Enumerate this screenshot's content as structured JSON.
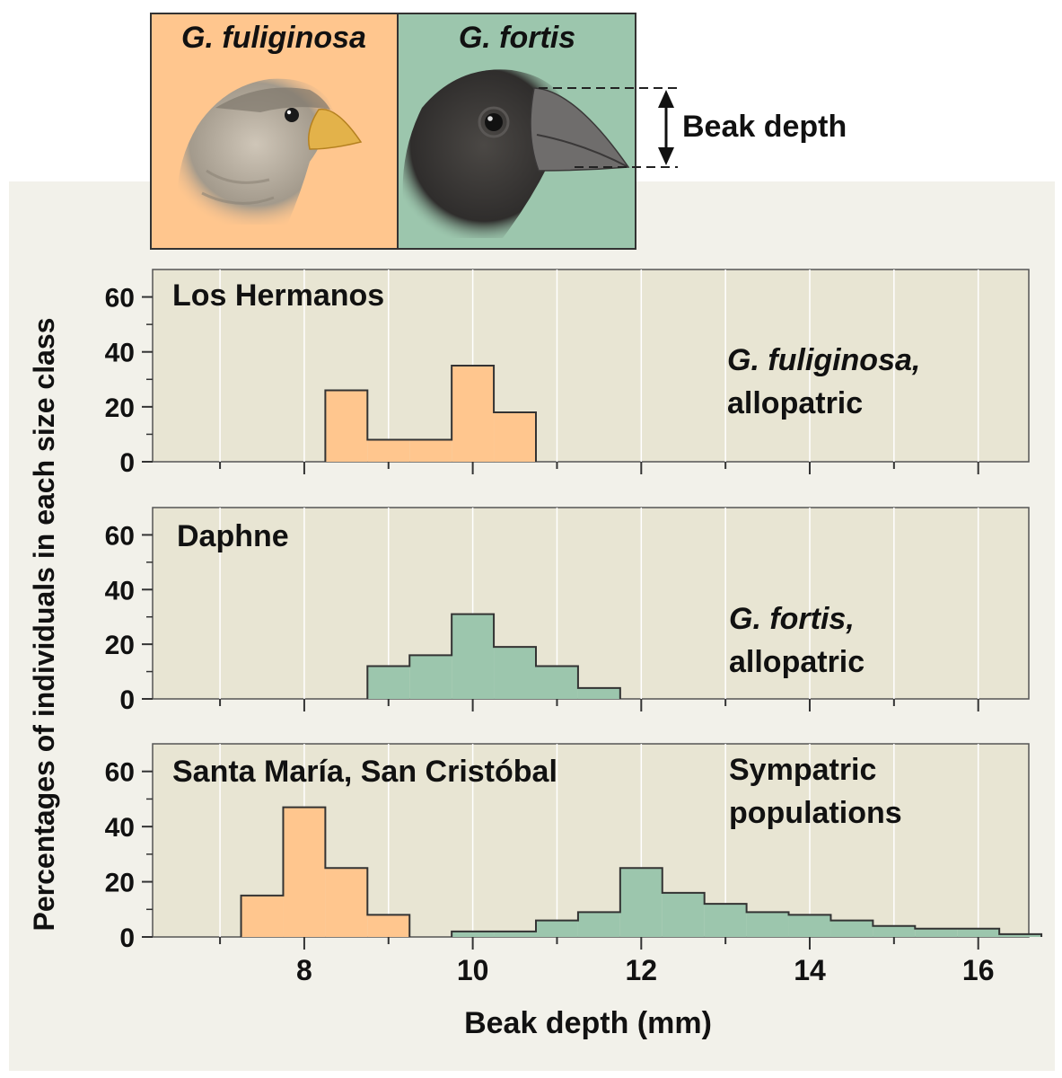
{
  "header": {
    "species_left": "G. fuliginosa",
    "species_right": "G. fortis",
    "beak_label": "Beak depth"
  },
  "colors": {
    "fuliginosa": "#ffc68e",
    "fortis": "#9cc6ad",
    "plot_bg": "#e8e5d3",
    "panel_bg": "#f2f1ea"
  },
  "chart_data": {
    "type": "histogram",
    "ylabel": "Percentages of individuals in each size class",
    "xlabel": "Beak depth (mm)",
    "xlim": [
      6.2,
      16.6
    ],
    "ylim": [
      0,
      70
    ],
    "x_ticks": [
      8,
      10,
      12,
      14,
      16
    ],
    "x_tick_labels": [
      "8",
      "10",
      "12",
      "14",
      "16"
    ],
    "y_ticks": [
      0,
      20,
      40,
      60
    ],
    "y_tick_labels": [
      "0",
      "20",
      "40",
      "60"
    ],
    "bin_width": 0.5,
    "panels": [
      {
        "title": "Los Hermanos",
        "annotation": [
          "G. fuliginosa,",
          "allopatric"
        ],
        "series": [
          {
            "name": "G. fuliginosa",
            "color": "fuliginosa",
            "bin_starts": [
              8.25,
              8.75,
              9.25,
              9.75,
              10.25
            ],
            "values": [
              26,
              8,
              8,
              35,
              18
            ]
          }
        ]
      },
      {
        "title": "Daphne",
        "annotation": [
          "G. fortis,",
          "allopatric"
        ],
        "series": [
          {
            "name": "G. fortis",
            "color": "fortis",
            "bin_starts": [
              8.75,
              9.25,
              9.75,
              10.25,
              10.75,
              11.25
            ],
            "values": [
              12,
              16,
              31,
              19,
              12,
              4
            ]
          }
        ]
      },
      {
        "title": "Santa María, San Cristóbal",
        "annotation": [
          "Sympatric",
          "populations"
        ],
        "series": [
          {
            "name": "G. fuliginosa",
            "color": "fuliginosa",
            "bin_starts": [
              7.25,
              7.75,
              8.25,
              8.75
            ],
            "values": [
              15,
              47,
              25,
              8
            ]
          },
          {
            "name": "G. fortis",
            "color": "fortis",
            "bin_starts": [
              9.75,
              10.25,
              10.75,
              11.25,
              11.75,
              12.25,
              12.75,
              13.25,
              13.75,
              14.25,
              14.75,
              15.25,
              15.75,
              16.25
            ],
            "values": [
              2,
              2,
              6,
              9,
              25,
              16,
              12,
              9,
              8,
              6,
              4,
              3,
              3,
              1
            ]
          }
        ]
      }
    ]
  }
}
